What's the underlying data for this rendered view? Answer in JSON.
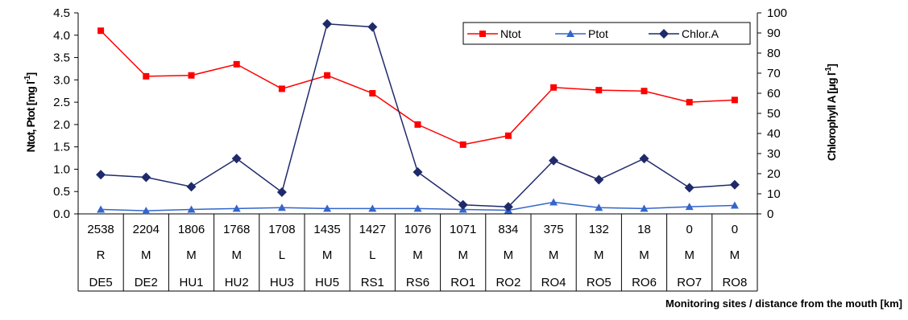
{
  "chart_data": {
    "type": "line",
    "xlabel": "Monitoring sites / distance from the mouth [km]",
    "ylabel_left": "Ntot, Ptot [mg l-1]",
    "ylabel_right": "Chlorophyll A [μg l-1]",
    "ylim_left": [
      0,
      4.5
    ],
    "ylim_right": [
      0,
      100
    ],
    "y_ticks_left": [
      "0.0",
      "0.5",
      "1.0",
      "1.5",
      "2.0",
      "2.5",
      "3.0",
      "3.5",
      "4.0",
      "4.5"
    ],
    "y_ticks_right": [
      "0",
      "10",
      "20",
      "30",
      "40",
      "50",
      "60",
      "70",
      "80",
      "90",
      "100"
    ],
    "grid": false,
    "legend_position": "top-right",
    "categories": [
      "DE5",
      "DE2",
      "HU1",
      "HU2",
      "HU3",
      "HU5",
      "RS1",
      "RS6",
      "RO1",
      "RO2",
      "RO4",
      "RO5",
      "RO6",
      "RO7",
      "RO8"
    ],
    "category_rows": [
      [
        "2538",
        "2204",
        "1806",
        "1768",
        "1708",
        "1435",
        "1427",
        "1076",
        "1071",
        "834",
        "375",
        "132",
        "18",
        "0",
        "0"
      ],
      [
        "R",
        "M",
        "M",
        "M",
        "L",
        "M",
        "L",
        "M",
        "M",
        "M",
        "M",
        "M",
        "M",
        "M",
        "M"
      ],
      [
        "DE5",
        "DE2",
        "HU1",
        "HU2",
        "HU3",
        "HU5",
        "RS1",
        "RS6",
        "RO1",
        "RO2",
        "RO4",
        "RO5",
        "RO6",
        "RO7",
        "RO8"
      ]
    ],
    "series": [
      {
        "name": "Ntot",
        "axis": "left",
        "color": "#ff0000",
        "marker": "square",
        "values": [
          4.1,
          3.08,
          3.1,
          3.35,
          2.8,
          3.1,
          2.7,
          2.0,
          1.55,
          1.75,
          2.83,
          2.77,
          2.75,
          2.5,
          2.55
        ]
      },
      {
        "name": "Ptot",
        "axis": "left",
        "color": "#3366cc",
        "marker": "triangle",
        "values": [
          0.1,
          0.07,
          0.1,
          0.12,
          0.14,
          0.12,
          0.12,
          0.12,
          0.1,
          0.08,
          0.26,
          0.14,
          0.12,
          0.16,
          0.19
        ]
      },
      {
        "name": "Chlor.A",
        "axis": "right",
        "color": "#1f2a6b",
        "marker": "diamond",
        "values": [
          19.5,
          18.2,
          13.5,
          27.5,
          10.8,
          94.5,
          93.0,
          20.8,
          4.5,
          3.5,
          26.5,
          17.0,
          27.5,
          13.0,
          14.5
        ]
      }
    ]
  }
}
